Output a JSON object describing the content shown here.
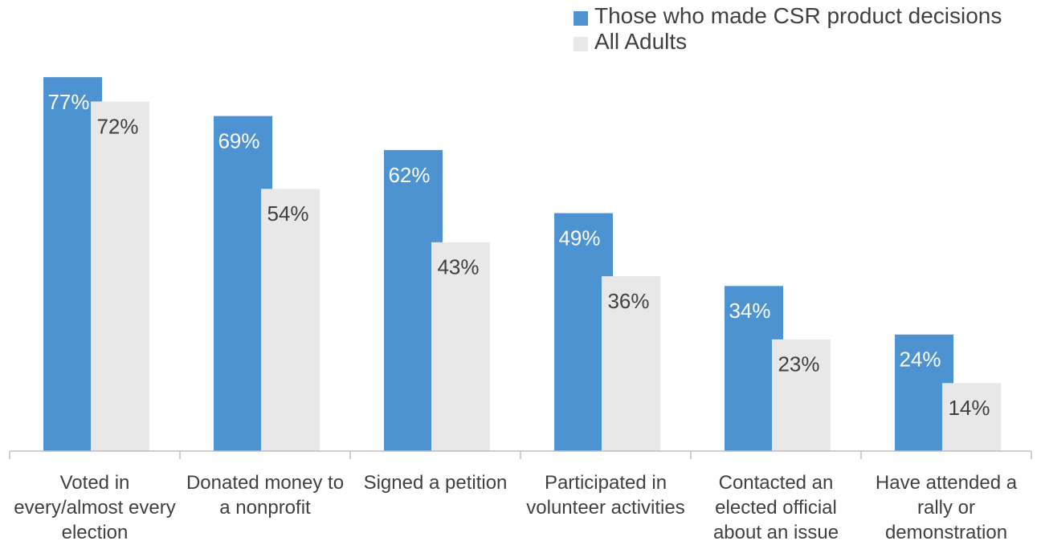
{
  "chart_data": {
    "type": "bar",
    "categories": [
      "Voted in every/almost every election",
      "Donated money to a nonprofit",
      "Signed a petition",
      "Participated in volunteer activities",
      "Contacted an elected official about an issue",
      "Have attended a rally or demonstration"
    ],
    "series": [
      {
        "name": "Those who made CSR product decisions",
        "color": "#4e93d1",
        "values": [
          77,
          69,
          62,
          49,
          34,
          24
        ],
        "value_labels": [
          "77%",
          "69%",
          "62%",
          "49%",
          "34%",
          "24%"
        ]
      },
      {
        "name": "All Adults",
        "color": "#e8e8e8",
        "values": [
          72,
          54,
          43,
          36,
          23,
          14
        ],
        "value_labels": [
          "72%",
          "54%",
          "43%",
          "36%",
          "23%",
          "14%"
        ]
      }
    ]
  }
}
